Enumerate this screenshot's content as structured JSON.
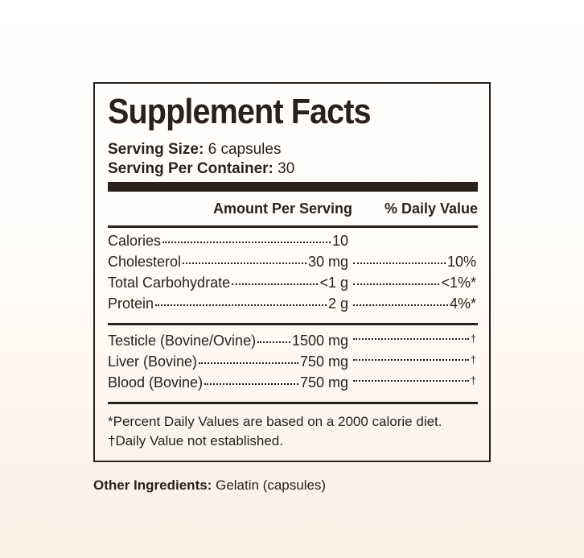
{
  "label": {
    "title": "Supplement Facts",
    "serving_size": {
      "label": "Serving Size:",
      "value": "6 capsules"
    },
    "servings_per_container": {
      "label": "Serving Per Container:",
      "value": "30"
    },
    "columns": [
      "Amount Per Serving",
      "% Daily Value"
    ],
    "nutrients": [
      {
        "name": "Calories",
        "amount": "10"
      },
      {
        "name": "Cholesterol",
        "amount": "30 mg",
        "daily_value": "10%"
      },
      {
        "name": "Total Carbohydrate",
        "amount": "<1 g",
        "daily_value": "<1%*"
      },
      {
        "name": "Protein",
        "amount": "2 g",
        "daily_value": "4%*"
      }
    ],
    "ingredients": [
      {
        "name": "Testicle (Bovine/Ovine)",
        "amount": "1500 mg",
        "daily_value": "†"
      },
      {
        "name": "Liver (Bovine)",
        "amount": "750 mg",
        "daily_value": "†"
      },
      {
        "name": "Blood (Bovine)",
        "amount": "750 mg",
        "daily_value": "†"
      }
    ],
    "footnotes": [
      "*Percent Daily Values are based on a 2000 calorie diet.",
      "†Daily Value not established."
    ]
  },
  "other_ingredients": {
    "label": "Other Ingredients:",
    "value": "Gelatin (capsules)"
  }
}
